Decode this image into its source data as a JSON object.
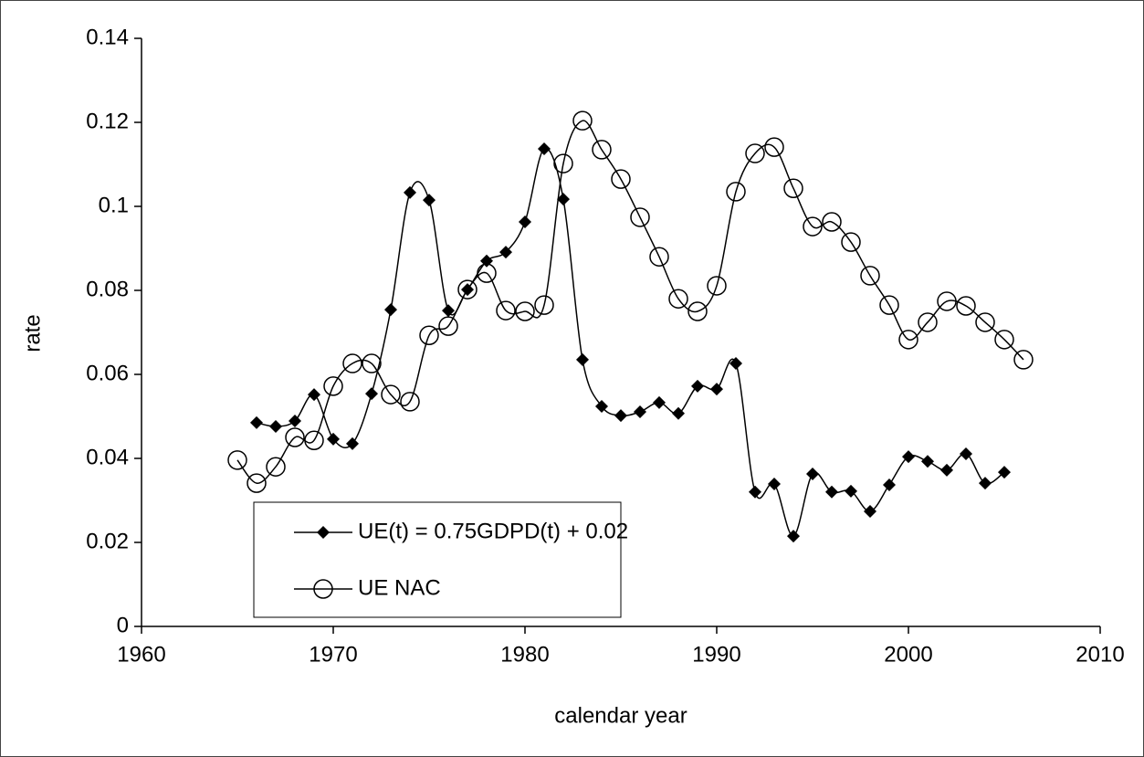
{
  "chart_data": {
    "type": "line",
    "xlabel": "calendar year",
    "ylabel": "rate",
    "xlim": [
      1960,
      2010
    ],
    "xticks": [
      1960,
      1970,
      1980,
      1990,
      2000,
      2010
    ],
    "ylim": [
      0,
      0.14
    ],
    "yticks": [
      0,
      0.02,
      0.04,
      0.06,
      0.08,
      0.1,
      0.12,
      0.14
    ],
    "series": [
      {
        "name": "UE(t) = 0.75GDPD(t) + 0.02",
        "color": "#000000",
        "marker": "diamond",
        "x": [
          1966,
          1967,
          1968,
          1969,
          1970,
          1971,
          1972,
          1973,
          1974,
          1975,
          1976,
          1977,
          1978,
          1979,
          1980,
          1981,
          1982,
          1983,
          1984,
          1985,
          1986,
          1987,
          1988,
          1989,
          1990,
          1991,
          1992,
          1993,
          1994,
          1995,
          1996,
          1997,
          1998,
          1999,
          2000,
          2001,
          2002,
          2003,
          2004,
          2005
        ],
        "values": [
          0.0485,
          0.0476,
          0.0489,
          0.0552,
          0.0446,
          0.0435,
          0.0554,
          0.0754,
          0.1033,
          0.1015,
          0.0752,
          0.0802,
          0.087,
          0.0891,
          0.0963,
          0.1137,
          0.1017,
          0.0635,
          0.0524,
          0.0502,
          0.0511,
          0.0533,
          0.0507,
          0.0572,
          0.0565,
          0.0626,
          0.032,
          0.0339,
          0.0215,
          0.0363,
          0.032,
          0.0322,
          0.0274,
          0.0337,
          0.0404,
          0.0393,
          0.0372,
          0.0411,
          0.0341,
          0.0367
        ]
      },
      {
        "name": "UE NAC",
        "color": "#000000",
        "marker": "circle",
        "x": [
          1965,
          1966,
          1967,
          1968,
          1969,
          1970,
          1971,
          1972,
          1973,
          1974,
          1975,
          1976,
          1977,
          1978,
          1979,
          1980,
          1981,
          1982,
          1983,
          1984,
          1985,
          1986,
          1987,
          1988,
          1989,
          1990,
          1991,
          1992,
          1993,
          1994,
          1995,
          1996,
          1997,
          1998,
          1999,
          2000,
          2001,
          2002,
          2003,
          2004,
          2005,
          2006
        ],
        "values": [
          0.0396,
          0.0341,
          0.038,
          0.045,
          0.0443,
          0.0572,
          0.0626,
          0.0626,
          0.0552,
          0.0535,
          0.0693,
          0.0715,
          0.0802,
          0.0841,
          0.0752,
          0.075,
          0.0765,
          0.1102,
          0.1204,
          0.1135,
          0.1065,
          0.0974,
          0.088,
          0.078,
          0.075,
          0.0811,
          0.1035,
          0.1126,
          0.1141,
          0.1043,
          0.0952,
          0.0963,
          0.0915,
          0.0835,
          0.0765,
          0.0683,
          0.0724,
          0.0774,
          0.0763,
          0.0724,
          0.0683,
          0.0635
        ]
      }
    ]
  }
}
